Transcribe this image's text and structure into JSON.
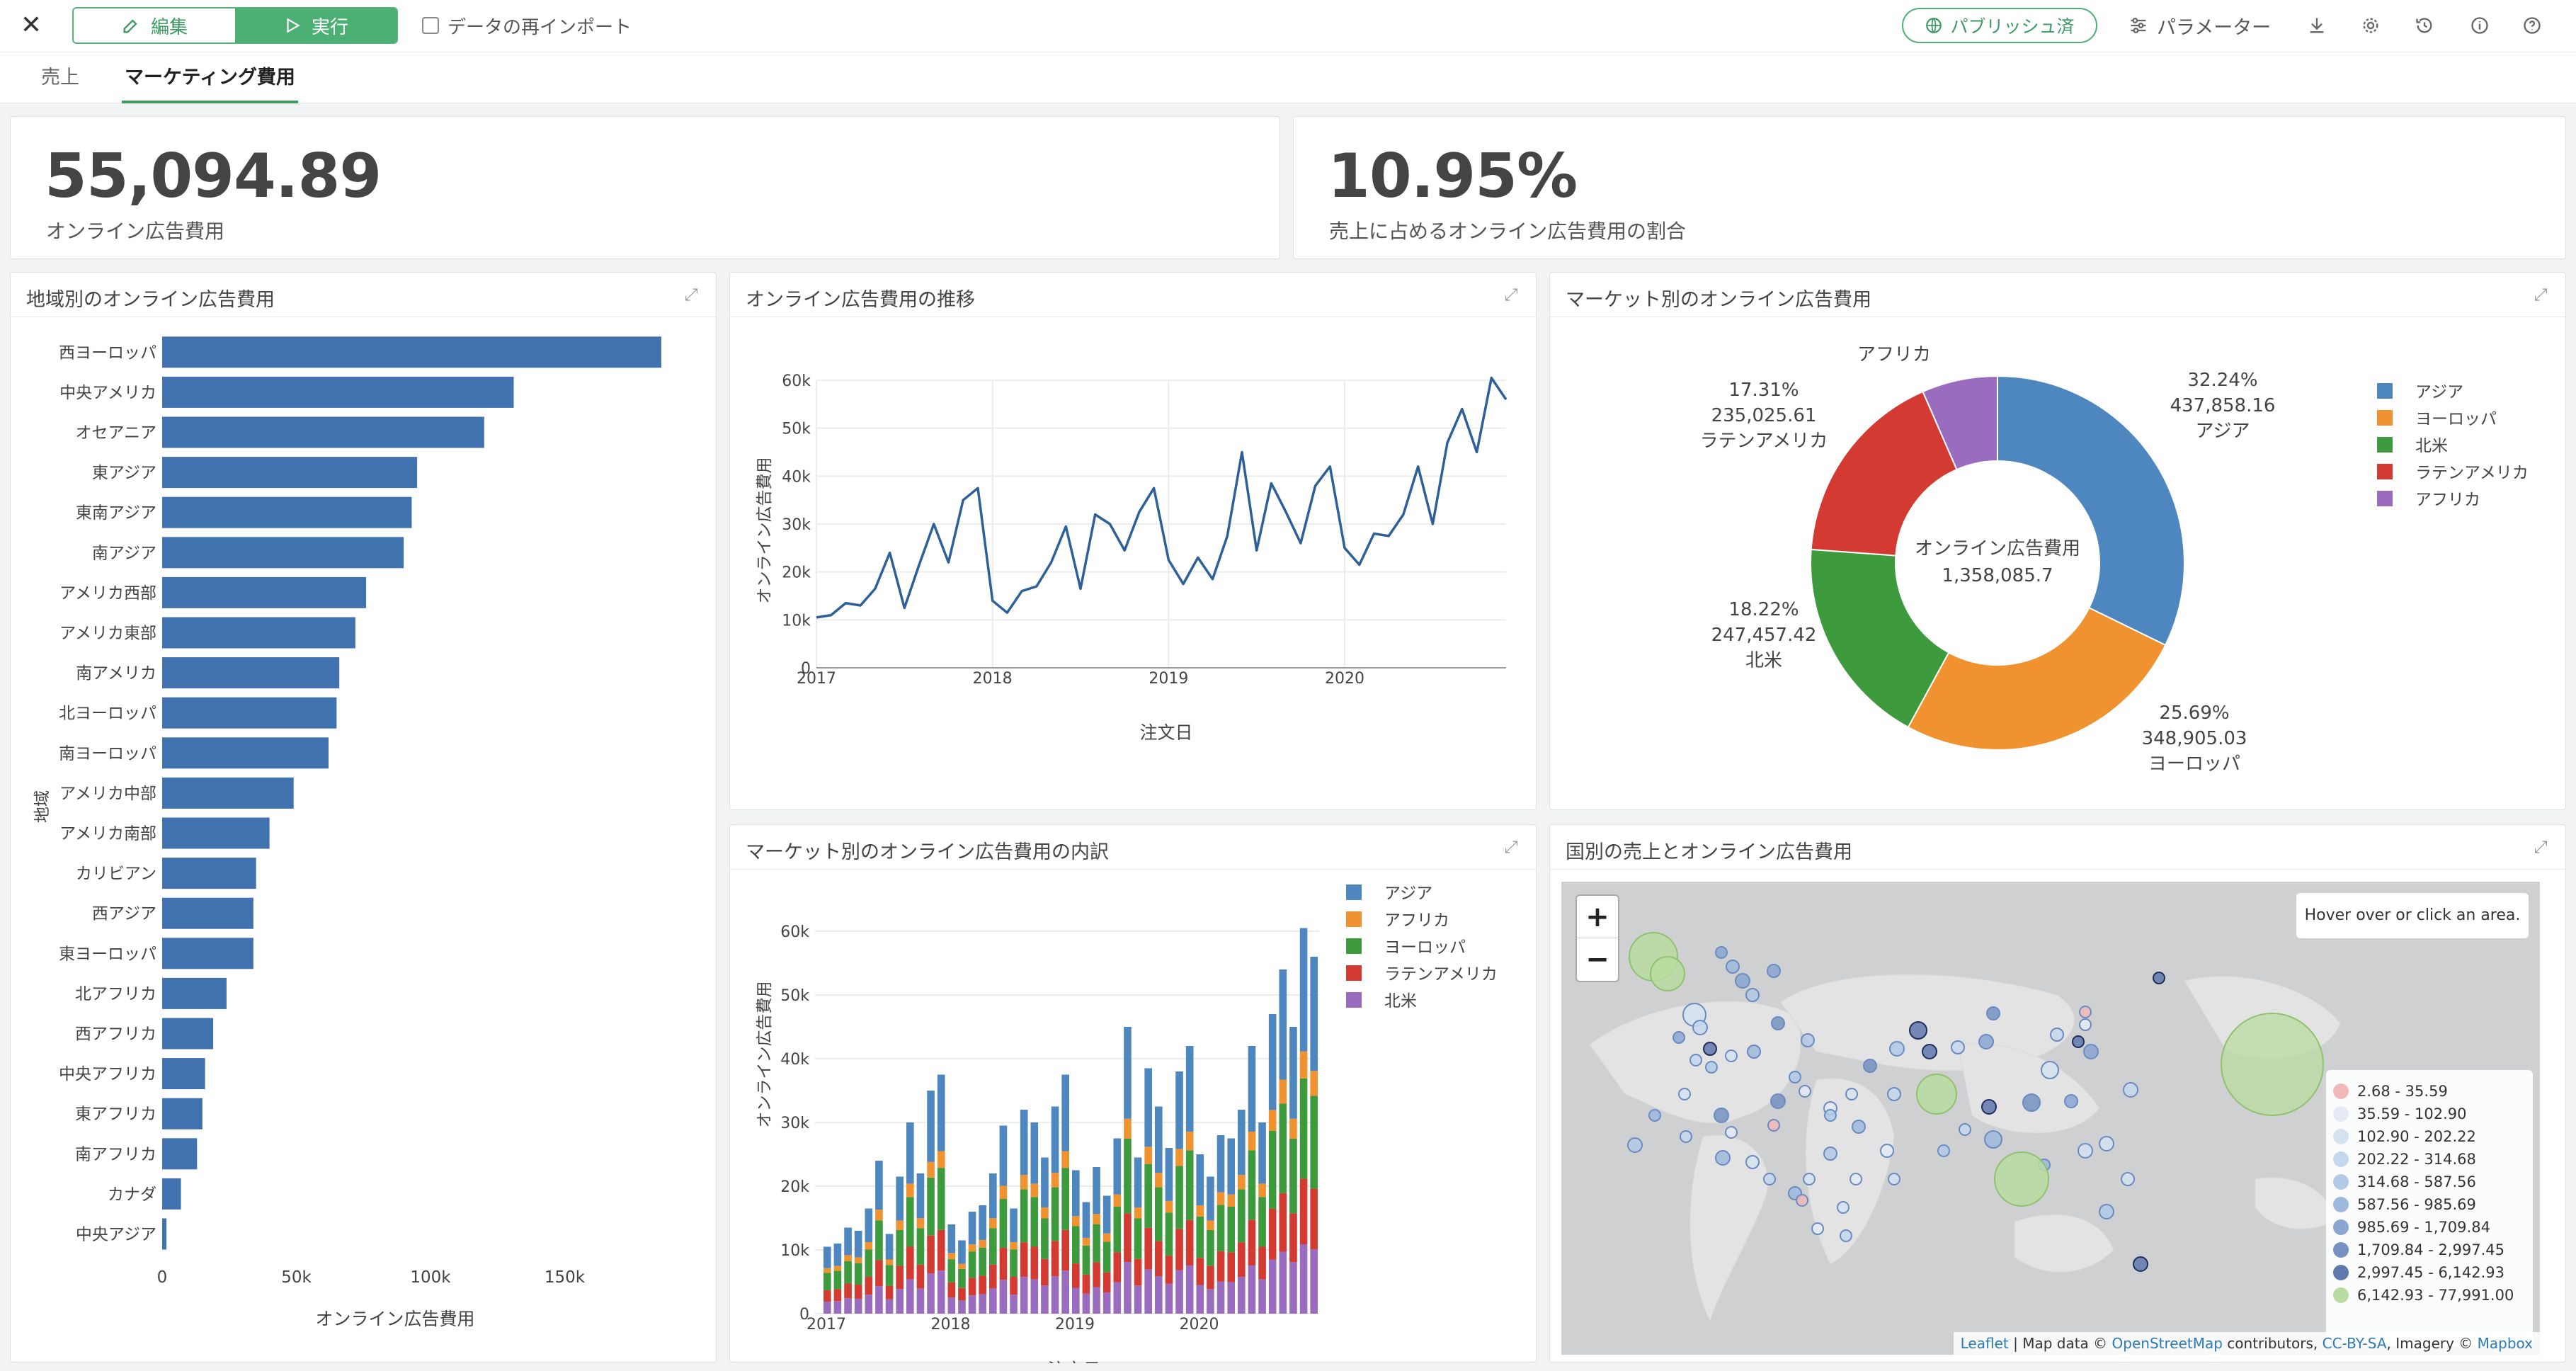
{
  "toolbar": {
    "close_icon": "close-icon",
    "edit_label": "編集",
    "run_label": "実行",
    "reimport_label": "データの再インポート",
    "publish_label": "パブリッシュ済",
    "parameters_label": "パラメーター",
    "icons": [
      "download-icon",
      "gear-icon",
      "history-icon",
      "info-icon",
      "help-icon"
    ]
  },
  "tabs": [
    {
      "label": "売上",
      "active": false
    },
    {
      "label": "マーケティング費用",
      "active": true
    }
  ],
  "kpis": [
    {
      "value": "55,094.89",
      "label": "オンライン広告費用"
    },
    {
      "value": "10.95%",
      "label": "売上に占めるオンライン広告費用の割合"
    }
  ],
  "cards": {
    "region_bar": "地域別のオンライン広告費用",
    "trend_line": "オンライン広告費用の推移",
    "market_donut": "マーケット別のオンライン広告費用",
    "market_stacked": "マーケット別のオンライン広告費用の内訳",
    "country_map": "国別の売上とオンライン広告費用"
  },
  "colors": {
    "bar": "#3f72ae",
    "asia": "#4e86c0",
    "africa": "#f0922f",
    "europe": "#3d9a3d",
    "latam": "#d33a32",
    "namerica": "#9a6cc0",
    "accent": "#4caf73"
  },
  "chart_data": [
    {
      "type": "bar",
      "orientation": "horizontal",
      "categories": [
        "西ヨーロッパ",
        "中央アメリカ",
        "オセアニア",
        "東アジア",
        "東南アジア",
        "南アジア",
        "アメリカ西部",
        "アメリカ東部",
        "南アメリカ",
        "北ヨーロッパ",
        "南ヨーロッパ",
        "アメリカ中部",
        "アメリカ南部",
        "カリビアン",
        "西アジア",
        "東ヨーロッパ",
        "北アフリカ",
        "西アフリカ",
        "中央アフリカ",
        "東アフリカ",
        "南アフリカ",
        "カナダ",
        "中央アジア"
      ],
      "values": [
        186000,
        131000,
        120000,
        95000,
        93000,
        90000,
        76000,
        72000,
        66000,
        65000,
        62000,
        49000,
        40000,
        35000,
        34000,
        34000,
        24000,
        19000,
        16000,
        15000,
        13000,
        7000,
        1600
      ],
      "xlabel": "オンライン広告費用",
      "ylabel": "地域",
      "xlim": [
        0,
        200000
      ],
      "xticks": [
        "0",
        "50k",
        "100k",
        "150k"
      ]
    },
    {
      "type": "line",
      "xlabel": "注文日",
      "ylabel": "オンライン広告費用",
      "ylim": [
        0,
        60000
      ],
      "yticks": [
        "0",
        "10k",
        "20k",
        "30k",
        "40k",
        "50k",
        "60k"
      ],
      "xticks": [
        "2017",
        "2018",
        "2019",
        "2020"
      ],
      "x_start": "2017-01",
      "values": [
        10500,
        11000,
        13500,
        13000,
        16500,
        24000,
        12500,
        21500,
        30000,
        22000,
        35000,
        37500,
        14000,
        11500,
        16000,
        17000,
        22000,
        29500,
        16500,
        32000,
        30000,
        24500,
        32500,
        37500,
        22500,
        17500,
        23000,
        18500,
        27500,
        45000,
        24500,
        38500,
        32500,
        26000,
        38000,
        42000,
        25000,
        21500,
        28000,
        27500,
        32000,
        42000,
        30000,
        47000,
        54000,
        45000,
        60500,
        56000
      ]
    },
    {
      "type": "pie",
      "donut": true,
      "center_title": "オンライン広告費用",
      "center_value": "1,358,085.7",
      "slices": [
        {
          "name": "アジア",
          "pct": "32.24%",
          "value": "437,858.16",
          "v": 437858.16
        },
        {
          "name": "ヨーロッパ",
          "pct": "25.69%",
          "value": "348,905.03",
          "v": 348905.03
        },
        {
          "name": "北米",
          "pct": "18.22%",
          "value": "247,457.42",
          "v": 247457.42
        },
        {
          "name": "ラテンアメリカ",
          "pct": "17.31%",
          "value": "235,025.61",
          "v": 235025.61
        },
        {
          "name": "アフリカ",
          "pct": "",
          "value": "",
          "v": 88839.48
        }
      ],
      "legend": [
        "アジア",
        "ヨーロッパ",
        "北米",
        "ラテンアメリカ",
        "アフリカ"
      ]
    },
    {
      "type": "bar",
      "stacked": true,
      "xlabel": "注文日",
      "ylabel": "オンライン広告費用",
      "ylim": [
        0,
        60000
      ],
      "yticks": [
        "0",
        "10k",
        "20k",
        "30k",
        "40k",
        "50k",
        "60k"
      ],
      "xticks": [
        "2017",
        "2018",
        "2019",
        "2020"
      ],
      "series_order": [
        "北米",
        "ラテンアメリカ",
        "ヨーロッパ",
        "アフリカ",
        "アジア"
      ],
      "legend": [
        "アジア",
        "アフリカ",
        "ヨーロッパ",
        "ラテンアメリカ",
        "北米"
      ],
      "totals": [
        10500,
        11000,
        13500,
        13000,
        16500,
        24000,
        12500,
        21500,
        30000,
        22000,
        35000,
        37500,
        14000,
        11500,
        16000,
        17000,
        22000,
        29500,
        16500,
        32000,
        30000,
        24500,
        32500,
        37500,
        22500,
        17500,
        23000,
        18500,
        27500,
        45000,
        24500,
        38500,
        32500,
        26000,
        38000,
        42000,
        25000,
        21500,
        28000,
        27500,
        32000,
        42000,
        30000,
        47000,
        54000,
        45000,
        60500,
        56000
      ],
      "shares": {
        "北米": 0.18,
        "ラテンアメリカ": 0.17,
        "ヨーロッパ": 0.26,
        "アフリカ": 0.07,
        "アジア": 0.32
      }
    }
  ],
  "map": {
    "zoom_in": "+",
    "zoom_out": "−",
    "hover_text": "Hover over or click an area.",
    "legend": [
      "2.68 - 35.59",
      "35.59 - 102.90",
      "102.90 - 202.22",
      "202.22 - 314.68",
      "314.68 - 587.56",
      "587.56 - 985.69",
      "985.69 - 1,709.84",
      "1,709.84 - 2,997.45",
      "2,997.45 - 6,142.93",
      "6,142.93 - 77,991.00"
    ],
    "legend_colors": [
      "#f1b9b9",
      "#e4ebf4",
      "#d4e2f0",
      "#c5d7ec",
      "#b2cae6",
      "#9fb9dd",
      "#8aa6d1",
      "#7590c1",
      "#5f78ae",
      "#b9dca0"
    ],
    "attribution": {
      "leaflet": "Leaflet",
      "sep1": " | Map data © ",
      "osm": "OpenStreetMap",
      "sep2": " contributors, ",
      "license": "CC-BY-SA",
      "sep3": ", Imagery © ",
      "mapbox": "Mapbox"
    }
  }
}
